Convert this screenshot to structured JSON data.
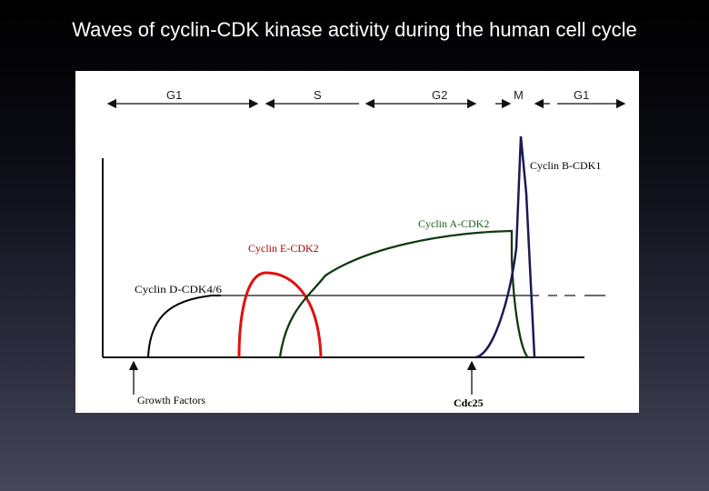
{
  "title": "Waves of cyclin-CDK kinase activity during the human cell cycle",
  "phases": [
    "G1",
    "S",
    "G2",
    "M",
    "G1"
  ],
  "curves": {
    "cyclin_b": {
      "label": "Cyclin B-CDK1",
      "color": "#000000"
    },
    "cyclin_a": {
      "label": "Cyclin A-CDK2",
      "color": "#1a5e1a"
    },
    "cyclin_e": {
      "label": "Cyclin E-CDK2",
      "color": "#b30000"
    },
    "cyclin_d": {
      "label": "Cyclin D-CDK4/6",
      "color": "#000000"
    }
  },
  "markers": {
    "growth_factors": "Growth Factors",
    "cdc25": "Cdc25"
  },
  "colors": {
    "cyclin_e_curve": "#e01010",
    "cyclin_a_curve": "#0f3a0f",
    "cyclin_b_curve": "#1a1a55",
    "cyclin_d_curve": "#000000"
  }
}
